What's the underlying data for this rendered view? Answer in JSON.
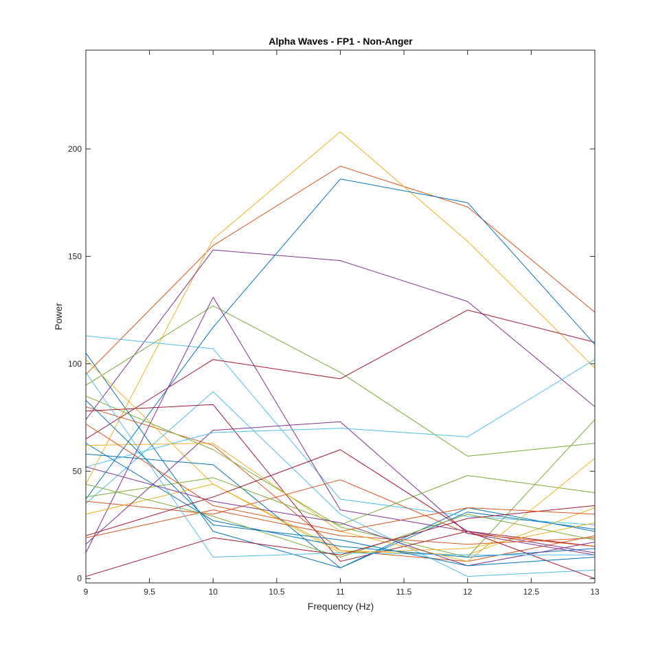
{
  "chart_data": {
    "type": "line",
    "title": "Alpha Waves - FP1 - Non-Anger",
    "xlabel": "Frequency (Hz)",
    "ylabel": "Power",
    "xlim": [
      9,
      13
    ],
    "ylim": [
      -2,
      246
    ],
    "xticks": [
      9,
      9.5,
      10,
      10.5,
      11,
      11.5,
      12,
      12.5,
      13
    ],
    "xtick_labels": [
      "9",
      "9.5",
      "10",
      "10.5",
      "11",
      "11.5",
      "12",
      "12.5",
      "13"
    ],
    "yticks": [
      0,
      50,
      100,
      150,
      200
    ],
    "ytick_labels": [
      "0",
      "50",
      "100",
      "150",
      "200"
    ],
    "grid": false,
    "box": true,
    "colors": [
      "#0072BD",
      "#D95319",
      "#EDB120",
      "#7E2F8E",
      "#77AC30",
      "#4DBEEE",
      "#A2142F"
    ],
    "x": [
      9,
      10,
      11,
      12,
      13
    ],
    "series": [
      {
        "values": [
          105,
          22,
          5,
          33,
          22
        ]
      },
      {
        "values": [
          95,
          155,
          192,
          173,
          124
        ]
      },
      {
        "values": [
          44,
          158,
          208,
          157,
          98
        ]
      },
      {
        "values": [
          74,
          153,
          148,
          129,
          80
        ]
      },
      {
        "values": [
          90,
          127,
          96,
          57,
          63
        ]
      },
      {
        "values": [
          113,
          107,
          37,
          29,
          25
        ]
      },
      {
        "values": [
          65,
          102,
          93,
          125,
          110
        ]
      },
      {
        "values": [
          37,
          117,
          186,
          175,
          109
        ]
      },
      {
        "values": [
          80,
          62,
          13,
          8,
          20
        ]
      },
      {
        "values": [
          102,
          44,
          13,
          11,
          33
        ]
      },
      {
        "values": [
          12,
          131,
          32,
          22,
          12
        ]
      },
      {
        "values": [
          85,
          60,
          24,
          10,
          74
        ]
      },
      {
        "values": [
          35,
          87,
          30,
          1,
          4
        ]
      },
      {
        "values": [
          78,
          81,
          8,
          22,
          15
        ]
      },
      {
        "values": [
          58,
          53,
          5,
          31,
          23
        ]
      },
      {
        "values": [
          36,
          30,
          46,
          21,
          15
        ]
      },
      {
        "values": [
          30,
          44,
          12,
          14,
          26
        ]
      },
      {
        "values": [
          16,
          69,
          73,
          21,
          11
        ]
      },
      {
        "values": [
          38,
          47,
          25,
          48,
          40
        ]
      },
      {
        "values": [
          52,
          68,
          70,
          66,
          102
        ]
      },
      {
        "values": [
          20,
          38,
          60,
          22,
          0
        ]
      },
      {
        "values": [
          63,
          27,
          15,
          10,
          14
        ]
      },
      {
        "values": [
          19,
          32,
          20,
          16,
          19
        ]
      },
      {
        "values": [
          62,
          63,
          22,
          8,
          56
        ]
      },
      {
        "values": [
          52,
          36,
          26,
          6,
          17
        ]
      },
      {
        "values": [
          44,
          29,
          10,
          30,
          18
        ]
      },
      {
        "values": [
          96,
          10,
          12,
          11,
          11
        ]
      },
      {
        "values": [
          1,
          19,
          11,
          28,
          34
        ]
      },
      {
        "values": [
          83,
          25,
          18,
          6,
          10
        ]
      },
      {
        "values": [
          72,
          34,
          22,
          33,
          30
        ]
      }
    ]
  }
}
